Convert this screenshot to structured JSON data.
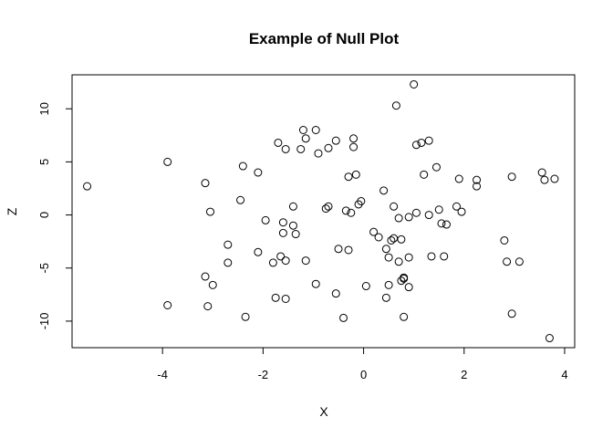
{
  "chart_data": {
    "type": "scatter",
    "title": "Example of Null Plot",
    "xlabel": "X",
    "ylabel": "Z",
    "xlim": [
      -5.8,
      4.2
    ],
    "ylim": [
      -12.5,
      13.2
    ],
    "xticks": [
      -4,
      -2,
      0,
      2,
      4
    ],
    "yticks": [
      -10,
      -5,
      0,
      5,
      10
    ],
    "xtick_labels": [
      "-4",
      "-2",
      "0",
      "2",
      "4"
    ],
    "ytick_labels": [
      "-10",
      "-5",
      "0",
      "5",
      "10"
    ],
    "grid": false,
    "legend": "none",
    "marker": "open-circle",
    "points": [
      [
        -5.5,
        2.7
      ],
      [
        -3.9,
        5.0
      ],
      [
        -3.9,
        -8.5
      ],
      [
        -3.15,
        3.0
      ],
      [
        -3.15,
        -5.8
      ],
      [
        -3.1,
        -8.6
      ],
      [
        -3.05,
        0.3
      ],
      [
        -3.0,
        -6.6
      ],
      [
        -2.7,
        -2.8
      ],
      [
        -2.7,
        -4.5
      ],
      [
        -2.45,
        1.4
      ],
      [
        -2.4,
        4.6
      ],
      [
        -2.35,
        -9.6
      ],
      [
        -2.1,
        4.0
      ],
      [
        -2.1,
        -3.5
      ],
      [
        -1.95,
        -0.5
      ],
      [
        -1.8,
        -4.5
      ],
      [
        -1.75,
        -7.8
      ],
      [
        -1.7,
        6.8
      ],
      [
        -1.65,
        -3.9
      ],
      [
        -1.6,
        -0.7
      ],
      [
        -1.6,
        -1.7
      ],
      [
        -1.55,
        6.2
      ],
      [
        -1.55,
        -4.3
      ],
      [
        -1.55,
        -7.9
      ],
      [
        -1.4,
        -1.0
      ],
      [
        -1.4,
        0.8
      ],
      [
        -1.35,
        -1.8
      ],
      [
        -1.25,
        6.2
      ],
      [
        -1.2,
        8.0
      ],
      [
        -1.15,
        7.2
      ],
      [
        -1.15,
        -4.3
      ],
      [
        -0.95,
        8.0
      ],
      [
        -0.95,
        -6.5
      ],
      [
        -0.9,
        5.8
      ],
      [
        -0.75,
        0.6
      ],
      [
        -0.7,
        0.8
      ],
      [
        -0.7,
        6.3
      ],
      [
        -0.55,
        7.0
      ],
      [
        -0.55,
        -7.4
      ],
      [
        -0.5,
        -3.2
      ],
      [
        -0.4,
        -9.7
      ],
      [
        -0.35,
        0.4
      ],
      [
        -0.3,
        3.6
      ],
      [
        -0.3,
        -3.3
      ],
      [
        -0.25,
        0.2
      ],
      [
        -0.2,
        6.4
      ],
      [
        -0.2,
        7.2
      ],
      [
        -0.15,
        3.8
      ],
      [
        -0.1,
        1.0
      ],
      [
        -0.05,
        1.3
      ],
      [
        0.05,
        -6.7
      ],
      [
        0.2,
        -1.6
      ],
      [
        0.3,
        -2.1
      ],
      [
        0.4,
        2.3
      ],
      [
        0.45,
        -7.8
      ],
      [
        0.45,
        -3.2
      ],
      [
        0.5,
        -4.0
      ],
      [
        0.5,
        -6.6
      ],
      [
        0.55,
        -2.4
      ],
      [
        0.6,
        0.8
      ],
      [
        0.6,
        -2.2
      ],
      [
        0.65,
        10.3
      ],
      [
        0.7,
        -0.3
      ],
      [
        0.7,
        -4.4
      ],
      [
        0.75,
        -2.3
      ],
      [
        0.75,
        -6.2
      ],
      [
        0.8,
        -5.9
      ],
      [
        0.8,
        -6.0
      ],
      [
        0.8,
        -9.6
      ],
      [
        0.9,
        -0.2
      ],
      [
        0.9,
        -4.0
      ],
      [
        0.9,
        -6.8
      ],
      [
        1.0,
        12.3
      ],
      [
        1.05,
        6.6
      ],
      [
        1.05,
        0.2
      ],
      [
        1.15,
        6.8
      ],
      [
        1.2,
        3.8
      ],
      [
        1.3,
        7.0
      ],
      [
        1.3,
        0.0
      ],
      [
        1.35,
        -3.9
      ],
      [
        1.45,
        4.5
      ],
      [
        1.5,
        0.5
      ],
      [
        1.55,
        -0.8
      ],
      [
        1.6,
        -3.9
      ],
      [
        1.65,
        -0.9
      ],
      [
        1.85,
        0.8
      ],
      [
        1.9,
        3.4
      ],
      [
        1.95,
        0.3
      ],
      [
        2.25,
        3.3
      ],
      [
        2.25,
        2.7
      ],
      [
        2.8,
        -2.4
      ],
      [
        2.85,
        -4.4
      ],
      [
        2.95,
        -9.3
      ],
      [
        2.95,
        3.6
      ],
      [
        3.1,
        -4.4
      ],
      [
        3.55,
        4.0
      ],
      [
        3.6,
        3.3
      ],
      [
        3.7,
        -11.6
      ],
      [
        3.8,
        3.4
      ]
    ]
  }
}
